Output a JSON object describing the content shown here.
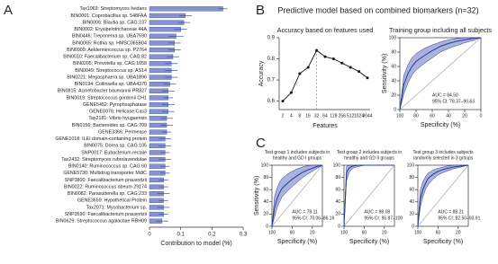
{
  "figure": {
    "panel_labels": [
      "A",
      "B",
      "C"
    ],
    "title": "Predictive model based on combined biomarkers (n=32)"
  },
  "chart_data": [
    {
      "type": "bar",
      "orientation": "horizontal",
      "color": "#8693cf",
      "error_color": "#3a4ea0",
      "categories": [
        "Tax1069: Streptomyces lividans",
        "BIN0001: Coprobacillus sp. 548FAA",
        "BIN0006: Blautia sp. CAG:237",
        "BIN0002: Erysipelotrichaceae 44A",
        "BIN0446: Treponema sp. UBA7590",
        "BIN0065: Rothia sp. HMSC065B04",
        "BIN0909: Aeldermincoccus sp. P2764",
        "BIN0010: Faecalibacterium sp. CAG:82",
        "BIN0205: Prevotella sp. CAG:1058",
        "BIN0049: Streptococcus sp. AS14",
        "BIN0221: Megasphaera sp. UBA1896",
        "BIN0194: Collinsella sp. UBA4370",
        "BIN0815: Acinetobacter baumannii PR327",
        "BIN0019: Streptococcus gordonii CH1",
        "GENE5452: Pyrophosphatase",
        "GENE0976: Helicase Cas3",
        "Tax2181: Vibrio hyugaensis",
        "BIN0156: Bacteroides sp. CAG:709",
        "GENE3366: Permease",
        "GENE1018: ILEI domain-containing protein",
        "BIN0075: Dorea sp. CAG:105",
        "SNP0017: Eubacterium rectale",
        "Tax2432: Streptomyces rubrolavendulae",
        "BIN0140: Ruminococcus sp. CAG:60",
        "GENE5730: Multidrug transporter MdtC",
        "SNP3800: Faecalibacterium prausnitzii",
        "BIN0022: Ruminococcus obeum 29174",
        "BIN0082: Parasutterella sp. CAG:233",
        "GENE3659: Hypothetical Protein",
        "Tax2071: Mycobacterium sp.",
        "SNP3590: Faecalibacterium prausnitzii",
        "BIN0629: Streptococcus agalactiae RBH09"
      ],
      "values": [
        0.235,
        0.115,
        0.11,
        0.1,
        0.085,
        0.08,
        0.08,
        0.075,
        0.07,
        0.07,
        0.07,
        0.065,
        0.06,
        0.06,
        0.06,
        0.06,
        0.055,
        0.055,
        0.055,
        0.05,
        0.05,
        0.05,
        0.05,
        0.05,
        0.05,
        0.045,
        0.045,
        0.045,
        0.045,
        0.045,
        0.045,
        0.04
      ],
      "errors": [
        0.015,
        0.02,
        0.02,
        0.02,
        0.025,
        0.02,
        0.02,
        0.02,
        0.02,
        0.02,
        0.02,
        0.02,
        0.02,
        0.015,
        0.02,
        0.02,
        0.02,
        0.02,
        0.015,
        0.02,
        0.02,
        0.015,
        0.02,
        0.015,
        0.015,
        0.015,
        0.015,
        0.02,
        0.015,
        0.02,
        0.015,
        0.02
      ],
      "xlim": [
        0,
        0.3
      ],
      "xticks": [
        0,
        0.1,
        0.2,
        0.3
      ],
      "xlabel": "Contribution to model (%)"
    },
    {
      "type": "line",
      "title": "Accuracy based on features used",
      "color": "#111",
      "categories": [
        "2",
        "4",
        "8",
        "16",
        "32",
        "64",
        "128",
        "256",
        "512",
        "1024",
        "8044"
      ],
      "values": [
        0.6,
        0.64,
        0.73,
        0.76,
        0.84,
        0.81,
        0.8,
        0.78,
        0.76,
        0.74,
        0.71
      ],
      "ylim": [
        0.56,
        0.9
      ],
      "yticks": [
        0.6,
        0.7,
        0.8,
        0.9
      ],
      "xlabel": "Features",
      "ylabel": "Accuracy"
    },
    {
      "type": "roc",
      "title": "Training group including all subjects",
      "color": "#2c3a8c",
      "band_color": "#8e9ad4",
      "x": [
        100,
        95,
        90,
        85,
        80,
        70,
        60,
        50,
        40,
        30,
        20,
        10,
        0
      ],
      "values": [
        0,
        35,
        50,
        60,
        67,
        75,
        82,
        88,
        92,
        95,
        97,
        99,
        100
      ],
      "lower": [
        0,
        22,
        37,
        48,
        55,
        64,
        72,
        80,
        85,
        89,
        93,
        96,
        100
      ],
      "upper": [
        0,
        48,
        62,
        72,
        78,
        85,
        90,
        94,
        97,
        99,
        100,
        100,
        100
      ],
      "xlim": [
        100,
        0
      ],
      "ylim": [
        0,
        100
      ],
      "xticks": [
        100,
        80,
        60,
        40,
        20,
        0
      ],
      "yticks": [
        0,
        20,
        40,
        60,
        80,
        100
      ],
      "xlabel": "Specificity (%)",
      "ylabel": "Sensitivity (%)",
      "annotations": [
        "AUC = 84.50",
        "95% CI: 78.37–90.63"
      ]
    },
    {
      "type": "roc",
      "title": [
        "Test group 1 includes subjects in",
        "healthy and GD I groups"
      ],
      "color": "#2c3a8c",
      "band_color": "#8e9ad4",
      "x": [
        100,
        95,
        90,
        85,
        80,
        70,
        60,
        50,
        40,
        30,
        20,
        10,
        0
      ],
      "values": [
        0,
        30,
        45,
        55,
        62,
        70,
        77,
        83,
        88,
        92,
        95,
        98,
        100
      ],
      "lower": [
        0,
        15,
        30,
        40,
        48,
        57,
        65,
        72,
        79,
        85,
        90,
        95,
        100
      ],
      "upper": [
        0,
        48,
        62,
        72,
        78,
        85,
        90,
        94,
        97,
        99,
        100,
        100,
        100
      ],
      "xlim": [
        100,
        0
      ],
      "ylim": [
        0,
        100
      ],
      "xticks": [
        100,
        60,
        20
      ],
      "yticks": [
        0,
        20,
        40,
        60,
        80,
        100
      ],
      "xlabel": "Specificity (%)",
      "ylabel": "Sensitivity (%)",
      "annotations": [
        "AUC = 78.11",
        "95% CI: 70.06–86.16"
      ]
    },
    {
      "type": "roc",
      "title": [
        "Test group 2 includes subjects in",
        "healthy and GD II groups"
      ],
      "color": "#2c3a8c",
      "band_color": "#8e9ad4",
      "x": [
        100,
        95,
        90,
        85,
        80,
        70,
        60,
        50,
        40,
        30,
        20,
        10,
        0
      ],
      "values": [
        0,
        88,
        95,
        98,
        99,
        100,
        100,
        100,
        100,
        100,
        100,
        100,
        100
      ],
      "lower": [
        0,
        75,
        88,
        93,
        96,
        98,
        100,
        100,
        100,
        100,
        100,
        100,
        100
      ],
      "upper": [
        0,
        98,
        100,
        100,
        100,
        100,
        100,
        100,
        100,
        100,
        100,
        100,
        100
      ],
      "xlim": [
        100,
        0
      ],
      "ylim": [
        0,
        100
      ],
      "xticks": [
        100,
        60,
        20
      ],
      "yticks": [
        0,
        20,
        40,
        60,
        80,
        100
      ],
      "xlabel": "Specificity (%)",
      "annotations": [
        "AUC = 98.08",
        "95% CI: 95.87–100"
      ]
    },
    {
      "type": "roc",
      "title": [
        "Test group 3 includes subjects",
        "randomly selected in 3 groups"
      ],
      "color": "#2c3a8c",
      "band_color": "#8e9ad4",
      "x": [
        100,
        95,
        90,
        85,
        80,
        70,
        60,
        50,
        40,
        30,
        20,
        10,
        0
      ],
      "values": [
        0,
        45,
        60,
        70,
        78,
        85,
        90,
        93,
        95,
        97,
        98,
        99,
        100
      ],
      "lower": [
        0,
        32,
        48,
        60,
        68,
        77,
        84,
        88,
        91,
        94,
        96,
        98,
        100
      ],
      "upper": [
        0,
        60,
        73,
        81,
        87,
        92,
        95,
        97,
        99,
        100,
        100,
        100,
        100
      ],
      "xlim": [
        100,
        0
      ],
      "ylim": [
        0,
        100
      ],
      "xticks": [
        100,
        60,
        20
      ],
      "yticks": [
        0,
        20,
        40,
        60,
        80,
        100
      ],
      "xlabel": "Specificity (%)",
      "annotations": [
        "AUC = 88.21",
        "95% CI: 82.50–93.91"
      ]
    }
  ]
}
